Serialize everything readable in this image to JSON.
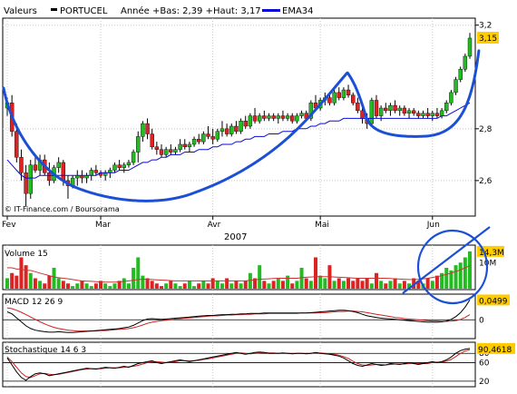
{
  "header": {
    "valeurs_label": "Valeurs",
    "symbol": "PORTUCEL",
    "range_text": "Année +Bas: 2,39 +Haut: 3,17",
    "ema_label": "EMA34"
  },
  "credit": "© IT-Finance.com / Boursorama",
  "year_label": "2007",
  "colors": {
    "up": "#22bb22",
    "down": "#dd2222",
    "ema": "#0a0ad8",
    "annotation": "#1a4fd6",
    "axis": "#000000",
    "grid": "#c8c8c8",
    "macd_signal": "#cc2222",
    "volume_avg": "#cc3333",
    "value_badge": "#ffcc00"
  },
  "chart_data": [
    {
      "type": "candlestick",
      "name": "price",
      "title": "PORTUCEL",
      "x_tick_labels": [
        "Fev",
        "Mar",
        "Avr",
        "Mai",
        "Jun"
      ],
      "x_tick_days": [
        0,
        20,
        44,
        67,
        91
      ],
      "ylim": [
        2.47,
        3.22
      ],
      "y_ticks": [
        2.6,
        2.8,
        3.2
      ],
      "last_value": "3,15",
      "ohlc": [
        [
          2.88,
          2.92,
          2.85,
          2.9
        ],
        [
          2.9,
          2.93,
          2.77,
          2.79
        ],
        [
          2.79,
          2.82,
          2.67,
          2.69
        ],
        [
          2.69,
          2.72,
          2.6,
          2.63
        ],
        [
          2.63,
          2.66,
          2.5,
          2.55
        ],
        [
          2.55,
          2.68,
          2.53,
          2.66
        ],
        [
          2.66,
          2.69,
          2.63,
          2.64
        ],
        [
          2.64,
          2.7,
          2.62,
          2.68
        ],
        [
          2.68,
          2.7,
          2.62,
          2.63
        ],
        [
          2.63,
          2.67,
          2.58,
          2.6
        ],
        [
          2.6,
          2.66,
          2.59,
          2.65
        ],
        [
          2.65,
          2.69,
          2.63,
          2.67
        ],
        [
          2.67,
          2.68,
          2.58,
          2.6
        ],
        [
          2.6,
          2.62,
          2.53,
          2.58
        ],
        [
          2.58,
          2.62,
          2.57,
          2.61
        ],
        [
          2.61,
          2.64,
          2.58,
          2.62
        ],
        [
          2.62,
          2.64,
          2.59,
          2.61
        ],
        [
          2.61,
          2.63,
          2.59,
          2.62
        ],
        [
          2.62,
          2.65,
          2.6,
          2.64
        ],
        [
          2.64,
          2.66,
          2.62,
          2.63
        ],
        [
          2.63,
          2.64,
          2.61,
          2.62
        ],
        [
          2.62,
          2.64,
          2.6,
          2.63
        ],
        [
          2.63,
          2.65,
          2.61,
          2.64
        ],
        [
          2.64,
          2.67,
          2.63,
          2.66
        ],
        [
          2.66,
          2.68,
          2.64,
          2.65
        ],
        [
          2.65,
          2.67,
          2.63,
          2.66
        ],
        [
          2.66,
          2.68,
          2.65,
          2.67
        ],
        [
          2.67,
          2.72,
          2.66,
          2.71
        ],
        [
          2.71,
          2.79,
          2.67,
          2.77
        ],
        [
          2.77,
          2.83,
          2.75,
          2.82
        ],
        [
          2.82,
          2.84,
          2.76,
          2.78
        ],
        [
          2.78,
          2.8,
          2.72,
          2.73
        ],
        [
          2.73,
          2.75,
          2.7,
          2.72
        ],
        [
          2.72,
          2.74,
          2.69,
          2.7
        ],
        [
          2.7,
          2.73,
          2.69,
          2.72
        ],
        [
          2.72,
          2.74,
          2.7,
          2.71
        ],
        [
          2.71,
          2.73,
          2.7,
          2.72
        ],
        [
          2.72,
          2.76,
          2.71,
          2.74
        ],
        [
          2.74,
          2.76,
          2.72,
          2.73
        ],
        [
          2.73,
          2.75,
          2.71,
          2.74
        ],
        [
          2.74,
          2.77,
          2.73,
          2.76
        ],
        [
          2.76,
          2.78,
          2.74,
          2.75
        ],
        [
          2.75,
          2.79,
          2.74,
          2.78
        ],
        [
          2.78,
          2.81,
          2.76,
          2.77
        ],
        [
          2.77,
          2.8,
          2.74,
          2.76
        ],
        [
          2.76,
          2.8,
          2.75,
          2.79
        ],
        [
          2.79,
          2.83,
          2.77,
          2.8
        ],
        [
          2.8,
          2.82,
          2.77,
          2.78
        ],
        [
          2.78,
          2.82,
          2.77,
          2.81
        ],
        [
          2.81,
          2.83,
          2.78,
          2.79
        ],
        [
          2.79,
          2.84,
          2.78,
          2.83
        ],
        [
          2.83,
          2.85,
          2.8,
          2.81
        ],
        [
          2.81,
          2.86,
          2.8,
          2.85
        ],
        [
          2.85,
          2.88,
          2.82,
          2.83
        ],
        [
          2.83,
          2.86,
          2.82,
          2.85
        ],
        [
          2.85,
          2.87,
          2.83,
          2.84
        ],
        [
          2.84,
          2.86,
          2.83,
          2.85
        ],
        [
          2.85,
          2.86,
          2.83,
          2.84
        ],
        [
          2.84,
          2.86,
          2.82,
          2.85
        ],
        [
          2.85,
          2.87,
          2.83,
          2.84
        ],
        [
          2.84,
          2.86,
          2.83,
          2.85
        ],
        [
          2.85,
          2.86,
          2.82,
          2.83
        ],
        [
          2.83,
          2.86,
          2.82,
          2.85
        ],
        [
          2.85,
          2.87,
          2.84,
          2.86
        ],
        [
          2.86,
          2.87,
          2.83,
          2.84
        ],
        [
          2.84,
          2.91,
          2.83,
          2.9
        ],
        [
          2.9,
          2.93,
          2.87,
          2.88
        ],
        [
          2.88,
          2.92,
          2.87,
          2.91
        ],
        [
          2.91,
          2.94,
          2.89,
          2.92
        ],
        [
          2.92,
          2.93,
          2.89,
          2.9
        ],
        [
          2.9,
          2.95,
          2.89,
          2.94
        ],
        [
          2.94,
          2.96,
          2.91,
          2.92
        ],
        [
          2.92,
          2.96,
          2.91,
          2.95
        ],
        [
          2.95,
          2.97,
          2.92,
          2.93
        ],
        [
          2.93,
          2.94,
          2.89,
          2.9
        ],
        [
          2.9,
          2.92,
          2.86,
          2.87
        ],
        [
          2.87,
          2.88,
          2.82,
          2.84
        ],
        [
          2.84,
          2.86,
          2.8,
          2.82
        ],
        [
          2.82,
          2.92,
          2.81,
          2.91
        ],
        [
          2.91,
          2.93,
          2.84,
          2.85
        ],
        [
          2.85,
          2.89,
          2.83,
          2.88
        ],
        [
          2.88,
          2.9,
          2.86,
          2.87
        ],
        [
          2.87,
          2.9,
          2.85,
          2.89
        ],
        [
          2.89,
          2.91,
          2.86,
          2.87
        ],
        [
          2.87,
          2.89,
          2.85,
          2.88
        ],
        [
          2.88,
          2.89,
          2.85,
          2.86
        ],
        [
          2.86,
          2.88,
          2.84,
          2.87
        ],
        [
          2.87,
          2.88,
          2.85,
          2.86
        ],
        [
          2.86,
          2.87,
          2.84,
          2.85
        ],
        [
          2.85,
          2.87,
          2.84,
          2.86
        ],
        [
          2.86,
          2.88,
          2.84,
          2.85
        ],
        [
          2.85,
          2.87,
          2.83,
          2.86
        ],
        [
          2.86,
          2.88,
          2.84,
          2.85
        ],
        [
          2.85,
          2.88,
          2.84,
          2.87
        ],
        [
          2.87,
          2.91,
          2.86,
          2.9
        ],
        [
          2.9,
          2.95,
          2.89,
          2.94
        ],
        [
          2.94,
          3.0,
          2.93,
          2.99
        ],
        [
          2.99,
          3.04,
          2.98,
          3.03
        ],
        [
          3.03,
          3.09,
          3.02,
          3.08
        ],
        [
          3.08,
          3.17,
          3.07,
          3.15
        ]
      ],
      "ema": [
        2.68,
        2.66,
        2.64,
        2.62,
        2.61,
        2.61,
        2.61,
        2.62,
        2.62,
        2.62,
        2.62,
        2.62,
        2.62,
        2.62,
        2.62,
        2.62,
        2.62,
        2.62,
        2.62,
        2.62,
        2.63,
        2.63,
        2.63,
        2.63,
        2.64,
        2.64,
        2.64,
        2.65,
        2.66,
        2.67,
        2.67,
        2.68,
        2.68,
        2.69,
        2.69,
        2.7,
        2.7,
        2.7,
        2.71,
        2.71,
        2.71,
        2.72,
        2.72,
        2.72,
        2.73,
        2.73,
        2.74,
        2.74,
        2.74,
        2.75,
        2.75,
        2.76,
        2.76,
        2.77,
        2.77,
        2.77,
        2.78,
        2.78,
        2.78,
        2.79,
        2.79,
        2.79,
        2.8,
        2.8,
        2.8,
        2.81,
        2.81,
        2.82,
        2.82,
        2.83,
        2.83,
        2.83,
        2.84,
        2.84,
        2.84,
        2.84,
        2.84,
        2.84,
        2.84,
        2.84,
        2.84,
        2.84,
        2.84,
        2.84,
        2.84,
        2.84,
        2.84,
        2.84,
        2.84,
        2.84,
        2.84,
        2.84,
        2.84,
        2.85,
        2.85,
        2.86,
        2.87,
        2.88,
        2.89,
        2.9
      ]
    },
    {
      "type": "bar",
      "name": "volume",
      "title": "Volume 15",
      "y_tick_labels": [
        "10M"
      ],
      "last_value": "14,3M",
      "values": [
        4,
        6,
        5,
        12,
        9,
        6,
        4,
        3,
        2,
        5,
        8,
        4,
        3,
        2,
        1,
        2,
        3,
        2,
        1,
        2,
        3,
        2,
        1,
        2,
        3,
        4,
        2,
        8,
        12,
        5,
        4,
        3,
        2,
        1,
        2,
        3,
        2,
        1,
        2,
        3,
        1,
        2,
        3,
        2,
        4,
        3,
        2,
        4,
        2,
        3,
        2,
        3,
        6,
        4,
        9,
        3,
        2,
        3,
        4,
        3,
        5,
        2,
        3,
        8,
        4,
        3,
        12,
        5,
        4,
        9,
        3,
        4,
        3,
        4,
        3,
        4,
        3,
        4,
        2,
        6,
        3,
        2,
        3,
        4,
        2,
        3,
        2,
        4,
        3,
        2,
        4,
        3,
        5,
        6,
        8,
        7,
        9,
        10,
        12,
        14.3
      ],
      "average": [
        8,
        8,
        7.5,
        7.5,
        7,
        7,
        6.5,
        6,
        5.5,
        5,
        4.5,
        4.2,
        4,
        3.8,
        3.5,
        3.2,
        3,
        2.9,
        2.8,
        2.7,
        2.6,
        2.5,
        2.5,
        2.5,
        2.6,
        2.8,
        3,
        3.2,
        3.5,
        3.6,
        3.6,
        3.5,
        3.4,
        3.3,
        3.2,
        3.1,
        3,
        3,
        3,
        3,
        3,
        3,
        3,
        3,
        3,
        3,
        3,
        3,
        3,
        3,
        3,
        3,
        3.2,
        3.4,
        3.6,
        3.7,
        3.8,
        3.9,
        4,
        4,
        4,
        4,
        4,
        4.2,
        4.4,
        4.5,
        4.6,
        4.6,
        4.6,
        4.6,
        4.5,
        4.4,
        4.3,
        4.2,
        4.1,
        4,
        4,
        4,
        4,
        4,
        4,
        4,
        3.9,
        3.8,
        3.7,
        3.6,
        3.5,
        3.5,
        3.6,
        3.8,
        4,
        4.3,
        4.6,
        5,
        5.5,
        6,
        6.6,
        7.2,
        8,
        8.8
      ]
    },
    {
      "type": "line",
      "name": "macd",
      "title": "MACD 12 26 9",
      "y_tick_labels": [
        "0"
      ],
      "last_value": "0,0499",
      "macd": [
        0.02,
        0.015,
        0.005,
        -0.005,
        -0.015,
        -0.022,
        -0.026,
        -0.028,
        -0.03,
        -0.031,
        -0.031,
        -0.03,
        -0.031,
        -0.032,
        -0.032,
        -0.031,
        -0.03,
        -0.029,
        -0.028,
        -0.027,
        -0.026,
        -0.025,
        -0.024,
        -0.023,
        -0.022,
        -0.02,
        -0.018,
        -0.014,
        -0.008,
        -0.002,
        0.002,
        0.003,
        0.002,
        0.001,
        0.002,
        0.003,
        0.004,
        0.005,
        0.006,
        0.007,
        0.008,
        0.009,
        0.01,
        0.011,
        0.011,
        0.012,
        0.013,
        0.013,
        0.014,
        0.014,
        0.015,
        0.015,
        0.016,
        0.016,
        0.016,
        0.017,
        0.017,
        0.017,
        0.017,
        0.017,
        0.017,
        0.017,
        0.017,
        0.017,
        0.017,
        0.018,
        0.019,
        0.02,
        0.021,
        0.022,
        0.023,
        0.024,
        0.024,
        0.023,
        0.021,
        0.018,
        0.014,
        0.01,
        0.008,
        0.006,
        0.004,
        0.003,
        0.002,
        0.001,
        0.0,
        -0.001,
        -0.002,
        -0.003,
        -0.004,
        -0.005,
        -0.006,
        -0.006,
        -0.006,
        -0.005,
        -0.003,
        0.001,
        0.008,
        0.018,
        0.032,
        0.0499
      ],
      "signal": [
        0.03,
        0.028,
        0.024,
        0.019,
        0.013,
        0.007,
        0.001,
        -0.005,
        -0.01,
        -0.015,
        -0.019,
        -0.022,
        -0.024,
        -0.026,
        -0.027,
        -0.028,
        -0.028,
        -0.028,
        -0.028,
        -0.028,
        -0.027,
        -0.027,
        -0.026,
        -0.025,
        -0.024,
        -0.023,
        -0.022,
        -0.02,
        -0.017,
        -0.013,
        -0.009,
        -0.006,
        -0.004,
        -0.002,
        -0.001,
        0.0,
        0.002,
        0.003,
        0.004,
        0.005,
        0.006,
        0.007,
        0.008,
        0.009,
        0.01,
        0.01,
        0.011,
        0.012,
        0.012,
        0.013,
        0.013,
        0.014,
        0.014,
        0.015,
        0.015,
        0.015,
        0.016,
        0.016,
        0.016,
        0.016,
        0.016,
        0.016,
        0.016,
        0.017,
        0.017,
        0.017,
        0.017,
        0.018,
        0.018,
        0.019,
        0.02,
        0.021,
        0.021,
        0.022,
        0.022,
        0.021,
        0.02,
        0.018,
        0.016,
        0.014,
        0.012,
        0.01,
        0.008,
        0.006,
        0.005,
        0.003,
        0.002,
        0.001,
        0.0,
        -0.001,
        -0.002,
        -0.003,
        -0.003,
        -0.004,
        -0.004,
        -0.003,
        -0.002,
        0.001,
        0.006,
        0.013
      ],
      "ylim": [
        -0.045,
        0.06
      ]
    },
    {
      "type": "line",
      "name": "stochastic",
      "title": "Stochastique 14 6 3",
      "y_ticks": [
        20,
        60,
        80
      ],
      "ylim": [
        10,
        100
      ],
      "last_value": "90,4618",
      "k": [
        70,
        55,
        40,
        28,
        22,
        30,
        36,
        38,
        36,
        32,
        34,
        36,
        38,
        40,
        42,
        44,
        46,
        48,
        47,
        46,
        48,
        50,
        49,
        48,
        50,
        52,
        50,
        54,
        58,
        60,
        62,
        64,
        60,
        58,
        60,
        62,
        64,
        66,
        64,
        62,
        64,
        66,
        68,
        70,
        72,
        74,
        76,
        78,
        80,
        82,
        80,
        78,
        80,
        82,
        83,
        82,
        80,
        80,
        80,
        81,
        80,
        79,
        80,
        80,
        79,
        80,
        82,
        80,
        79,
        78,
        76,
        74,
        70,
        64,
        58,
        54,
        52,
        55,
        58,
        56,
        54,
        55,
        58,
        57,
        56,
        58,
        60,
        58,
        56,
        58,
        60,
        62,
        60,
        62,
        66,
        72,
        80,
        86,
        89,
        90.46
      ],
      "d": [
        72,
        62,
        50,
        38,
        30,
        28,
        32,
        36,
        37,
        35,
        34,
        35,
        37,
        39,
        41,
        43,
        45,
        46,
        47,
        47,
        47,
        48,
        49,
        49,
        49,
        50,
        51,
        52,
        54,
        57,
        60,
        62,
        62,
        61,
        60,
        61,
        62,
        64,
        64,
        64,
        64,
        65,
        67,
        68,
        70,
        72,
        74,
        76,
        78,
        80,
        81,
        80,
        79,
        80,
        81,
        82,
        81,
        81,
        80,
        80,
        80,
        80,
        80,
        80,
        80,
        80,
        81,
        81,
        80,
        79,
        78,
        76,
        73,
        69,
        63,
        58,
        55,
        54,
        55,
        56,
        56,
        55,
        56,
        57,
        57,
        57,
        58,
        59,
        58,
        58,
        58,
        60,
        61,
        61,
        63,
        67,
        73,
        80,
        85,
        88
      ]
    }
  ]
}
